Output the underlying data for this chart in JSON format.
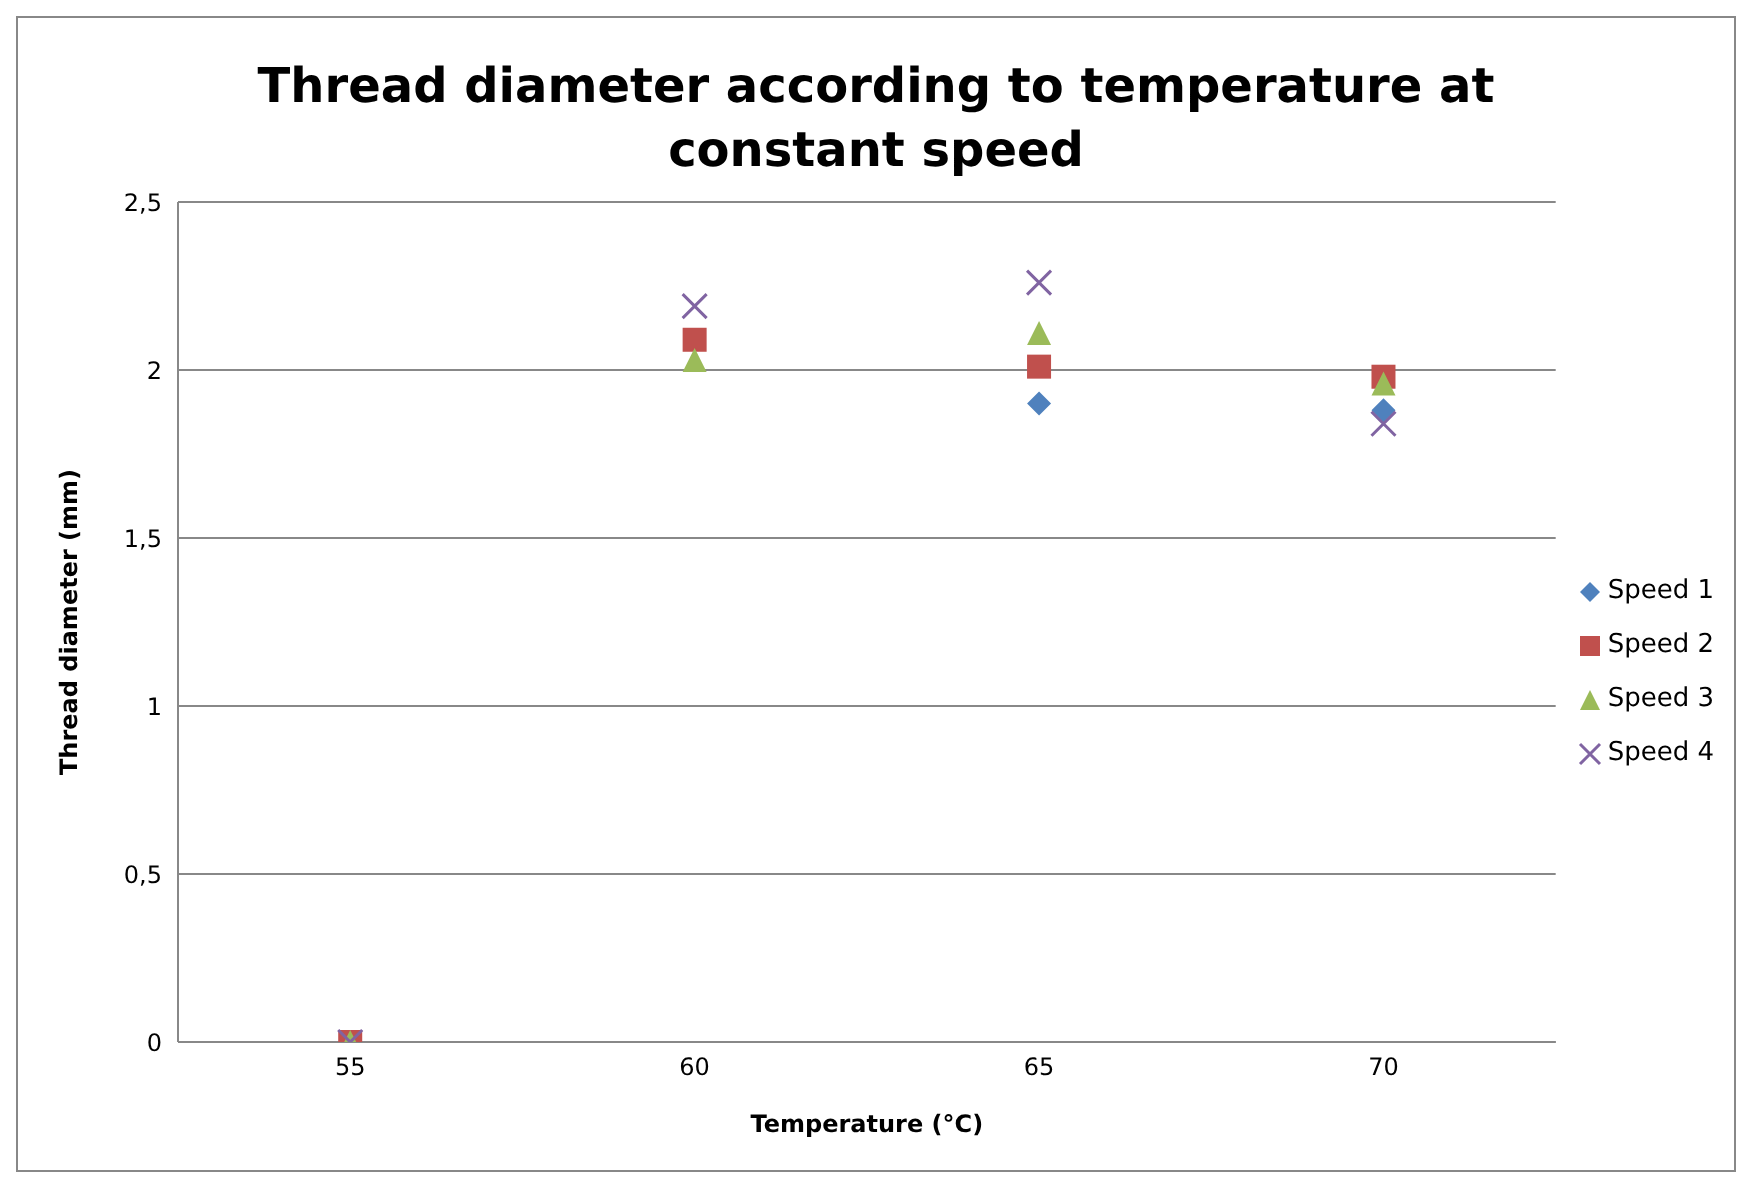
{
  "chart_data": {
    "type": "scatter",
    "title": "Thread diameter according to temperature at constant speed",
    "xlabel": "Temperature (°C)",
    "ylabel": "Thread diameter (mm)",
    "categories": [
      "55",
      "60",
      "65",
      "70"
    ],
    "series": [
      {
        "name": "Speed 1",
        "color": "#4f81bd",
        "marker": "diamond",
        "values": [
          null,
          null,
          1.9,
          1.88
        ]
      },
      {
        "name": "Speed 2",
        "color": "#c0504d",
        "marker": "square",
        "values": [
          0,
          2.09,
          2.01,
          1.98
        ]
      },
      {
        "name": "Speed 3",
        "color": "#9bbb59",
        "marker": "triangle",
        "values": [
          0,
          2.03,
          2.11,
          1.96
        ]
      },
      {
        "name": "Speed 4",
        "color": "#8064a2",
        "marker": "cross",
        "values": [
          0,
          2.19,
          2.26,
          1.84
        ]
      }
    ],
    "ylim": [
      0,
      2.5
    ],
    "yticks": [
      {
        "value": 0,
        "label": "0"
      },
      {
        "value": 0.5,
        "label": "0,5"
      },
      {
        "value": 1,
        "label": "1"
      },
      {
        "value": 1.5,
        "label": "1,5"
      },
      {
        "value": 2,
        "label": "2"
      },
      {
        "value": 2.5,
        "label": "2,5"
      }
    ],
    "grid": "y",
    "legend": "right"
  }
}
